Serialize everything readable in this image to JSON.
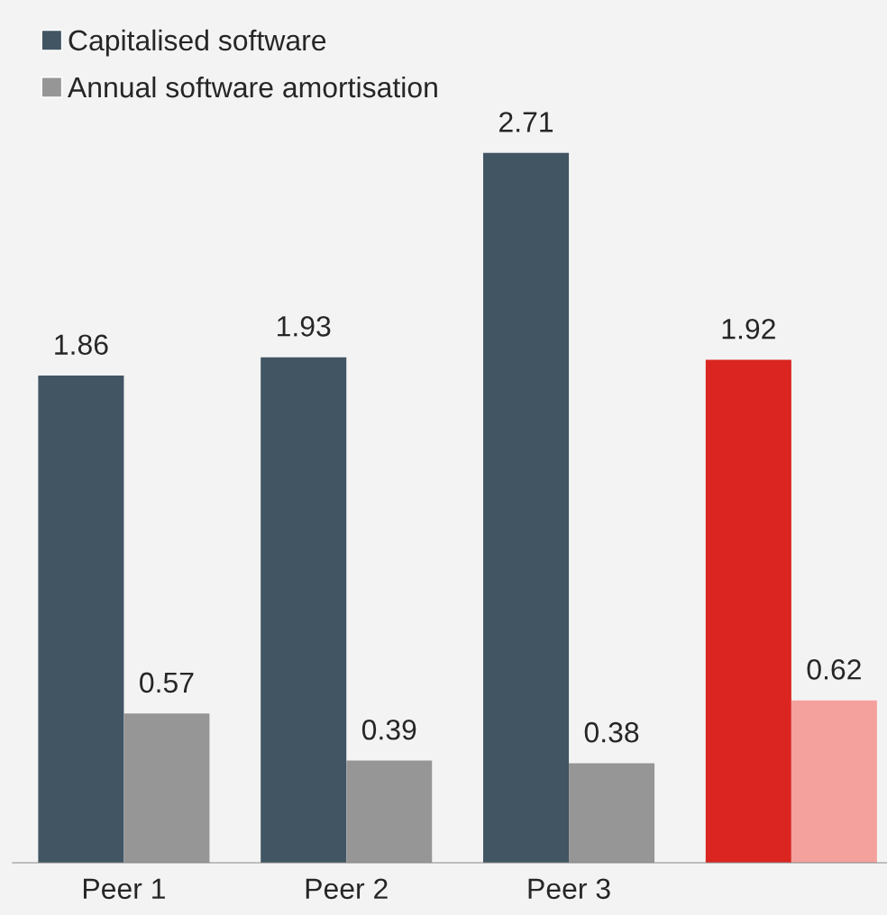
{
  "chart_data": {
    "type": "bar",
    "categories": [
      "Peer 1",
      "Peer 2",
      "Peer 3",
      null
    ],
    "series": [
      {
        "name": "Capitalised software",
        "color": "#415563",
        "colors": [
          "#415563",
          "#415563",
          "#415563",
          "#da2520"
        ],
        "values": [
          1.86,
          1.93,
          2.71,
          1.92
        ]
      },
      {
        "name": "Annual software amortisation",
        "color": "#969696",
        "colors": [
          "#969696",
          "#969696",
          "#969696",
          "#f4a19d"
        ],
        "values": [
          0.57,
          0.39,
          0.38,
          0.62
        ]
      }
    ],
    "data_labels": true,
    "legend": "top left",
    "grid": false
  }
}
